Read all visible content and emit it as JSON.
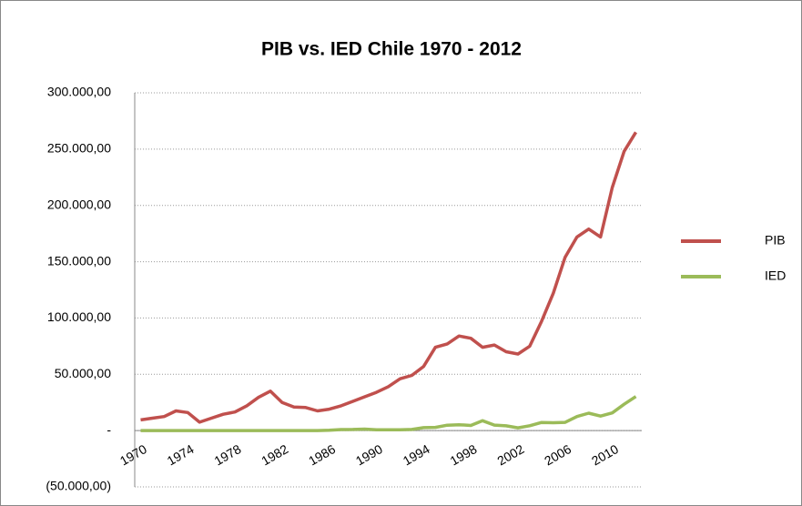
{
  "chart_data": {
    "type": "line",
    "title": "PIB vs. IED Chile 1970 - 2012",
    "categories": [
      "1970",
      null,
      null,
      null,
      "1974",
      null,
      null,
      null,
      "1978",
      null,
      null,
      null,
      "1982",
      null,
      null,
      null,
      "1986",
      null,
      null,
      null,
      "1990",
      null,
      null,
      null,
      "1994",
      null,
      null,
      null,
      "1998",
      null,
      null,
      null,
      "2002",
      null,
      null,
      null,
      "2006",
      null,
      null,
      null,
      "2010",
      null,
      null
    ],
    "series": [
      {
        "name": "PIB",
        "color": "#c0504d",
        "values": [
          9500,
          11000,
          12500,
          17500,
          16000,
          7500,
          11000,
          14500,
          16500,
          22000,
          29500,
          35000,
          25000,
          21000,
          20500,
          17500,
          19000,
          22000,
          26000,
          30000,
          34000,
          39000,
          46000,
          49000,
          57000,
          74000,
          77000,
          84000,
          82000,
          74000,
          76000,
          70000,
          68000,
          75000,
          97000,
          122000,
          154000,
          172000,
          179000,
          172000,
          216000,
          248000,
          265000
        ]
      },
      {
        "name": "IED",
        "color": "#9bbb59",
        "values": [
          0,
          0,
          0,
          0,
          0,
          0,
          0,
          0,
          0,
          0,
          0,
          0,
          0,
          0,
          0,
          0,
          300,
          900,
          1000,
          1300,
          700,
          800,
          700,
          1000,
          2600,
          2900,
          4800,
          5200,
          4600,
          8800,
          4900,
          4200,
          2500,
          4300,
          7200,
          7000,
          7300,
          12500,
          15500,
          12900,
          15700,
          23400,
          30300
        ]
      }
    ],
    "ylim": [
      -50000,
      300000
    ],
    "yticks": [
      {
        "value": -50000,
        "label": "(50.000,00)"
      },
      {
        "value": 0,
        "label": "-"
      },
      {
        "value": 50000,
        "label": "50.000,00"
      },
      {
        "value": 100000,
        "label": "100.000,00"
      },
      {
        "value": 150000,
        "label": "150.000,00"
      },
      {
        "value": 200000,
        "label": "200.000,00"
      },
      {
        "value": 250000,
        "label": "250.000,00"
      },
      {
        "value": 300000,
        "label": "300.000,00"
      }
    ],
    "grid": true,
    "legend": "right"
  }
}
